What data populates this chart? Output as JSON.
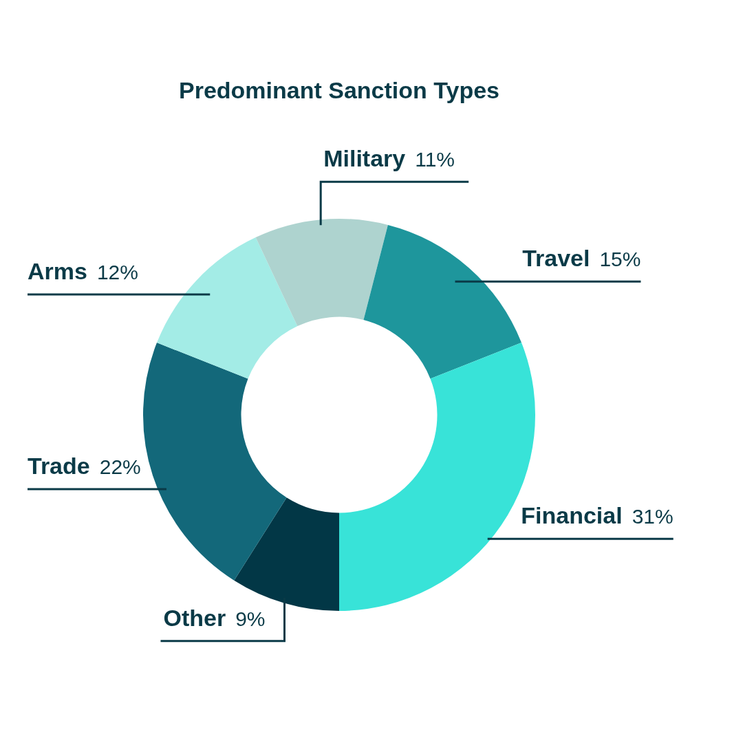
{
  "chart_data": {
    "type": "donut",
    "title": "Predominant Sanction Types",
    "categories": [
      "Other",
      "Trade",
      "Arms",
      "Military",
      "Travel",
      "Financial"
    ],
    "values": [
      9,
      22,
      12,
      11,
      15,
      31
    ],
    "value_labels": [
      "9%",
      "22%",
      "12%",
      "11%",
      "15%",
      "31%"
    ],
    "colors": [
      "#023746",
      "#13687a",
      "#a3ece6",
      "#aed3cf",
      "#1e969c",
      "#38e3d8"
    ]
  }
}
